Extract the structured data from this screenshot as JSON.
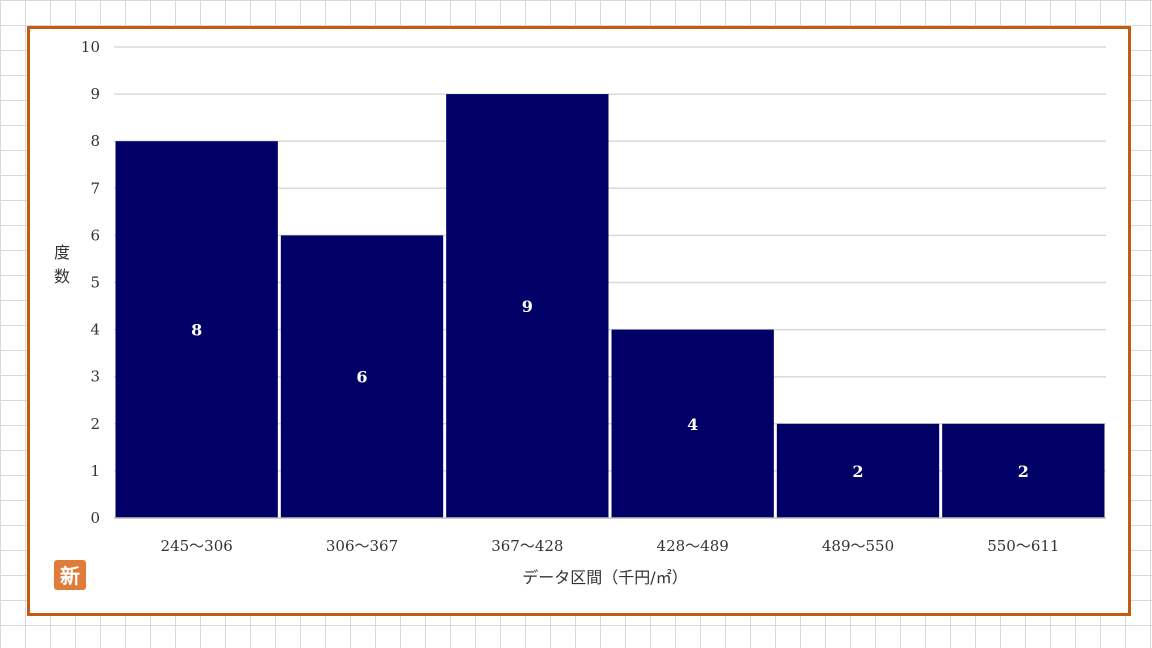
{
  "chart_data": {
    "type": "bar",
    "categories": [
      "245～306",
      "306～367",
      "367～428",
      "428～489",
      "489～550",
      "550～611"
    ],
    "values": [
      8,
      6,
      9,
      4,
      2,
      2
    ],
    "data_labels": [
      "8",
      "6",
      "9",
      "4",
      "2",
      "2"
    ],
    "title": "",
    "xlabel": "データ区間（千円/㎡）",
    "ylabel": "度数",
    "ylim": [
      0,
      10
    ],
    "yticks": [
      "0",
      "1",
      "2",
      "3",
      "4",
      "5",
      "6",
      "7",
      "8",
      "9",
      "10"
    ],
    "grid": true,
    "legend": "none",
    "colors": {
      "bar": "#000066",
      "frame": "#c55a11",
      "gridline": "#d9d9d9"
    }
  },
  "badge": {
    "icon": "shin-badge-icon",
    "text": "新",
    "color": "#e07b39"
  }
}
